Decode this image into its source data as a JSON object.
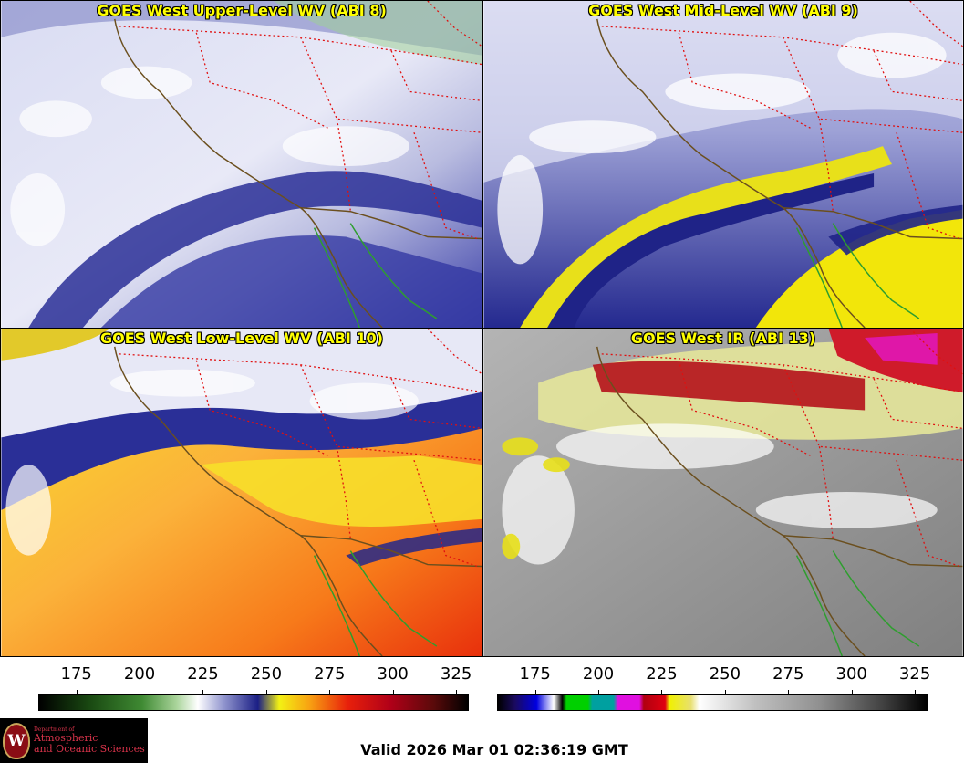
{
  "panels": [
    {
      "title": "GOES West Upper-Level WV (ABI 8)",
      "palette": "wv"
    },
    {
      "title": "GOES West Mid-Level WV (ABI 9)",
      "palette": "wv"
    },
    {
      "title": "GOES West Low-Level WV (ABI 10)",
      "palette": "wv_low"
    },
    {
      "title": "GOES West IR (ABI 13)",
      "palette": "ir"
    }
  ],
  "colorbars": {
    "left": {
      "ticks": [
        "175",
        "200",
        "225",
        "250",
        "275",
        "300",
        "325"
      ],
      "min": 160,
      "max": 330
    },
    "right": {
      "ticks": [
        "175",
        "200",
        "225",
        "250",
        "275",
        "300",
        "325"
      ],
      "min": 160,
      "max": 330
    }
  },
  "logo": {
    "line0": "Department of",
    "line1": "Atmospheric",
    "line2": "and Oceanic Sciences",
    "seal_letter": "W"
  },
  "valid_time": "Valid 2026 Mar 01 02:36:19 GMT",
  "colors": {
    "coast": "#6b4f1e",
    "border_state": "#e01010",
    "border_mexico": "#2e9e2e",
    "title": "#ffff00"
  }
}
